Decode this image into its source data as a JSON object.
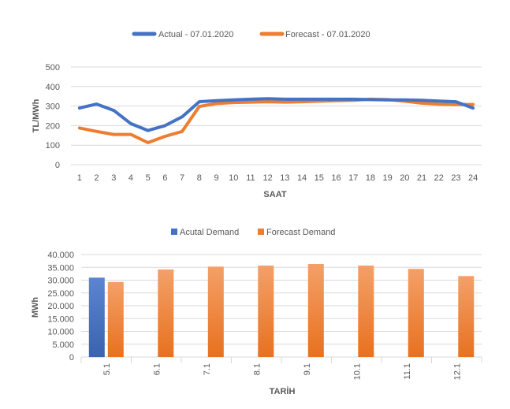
{
  "colors": {
    "actual": "#4472C4",
    "forecast": "#ED7D31",
    "grid": "#D9D9D9",
    "text": "#595959"
  },
  "chart_data": [
    {
      "type": "line",
      "title": "",
      "legend": [
        "Actual - 07.01.2020",
        "Forecast - 07.01.2020"
      ],
      "legend_position": "top",
      "xlabel": "SAAT",
      "ylabel": "TL/MWh",
      "x": [
        "1",
        "2",
        "3",
        "4",
        "5",
        "6",
        "7",
        "8",
        "9",
        "10",
        "11",
        "12",
        "13",
        "14",
        "15",
        "16",
        "17",
        "18",
        "19",
        "20",
        "21",
        "22",
        "23",
        "24"
      ],
      "yticks": [
        "0",
        "100",
        "200",
        "300",
        "400",
        "500"
      ],
      "ylim": [
        0,
        500
      ],
      "grid": true,
      "series": [
        {
          "name": "Actual - 07.01.2020",
          "values": [
            290,
            310,
            278,
            210,
            175,
            200,
            245,
            322,
            328,
            332,
            335,
            338,
            335,
            335,
            335,
            335,
            335,
            333,
            332,
            332,
            330,
            326,
            322,
            290
          ]
        },
        {
          "name": "Forecast - 07.01.2020",
          "values": [
            188,
            170,
            155,
            155,
            113,
            145,
            170,
            298,
            313,
            318,
            320,
            322,
            320,
            322,
            325,
            328,
            330,
            335,
            333,
            325,
            315,
            310,
            308,
            308
          ]
        }
      ]
    },
    {
      "type": "bar",
      "title": "",
      "legend": [
        "Acutal Demand",
        "Forecast Demand"
      ],
      "legend_position": "top",
      "xlabel": "TARİH",
      "ylabel": "MWh",
      "categories": [
        "5.1",
        "6.1",
        "7.1",
        "8.1",
        "9.1",
        "10.1",
        "11.1",
        "12.1"
      ],
      "yticks": [
        "0",
        "5.000",
        "10.000",
        "15.000",
        "20.000",
        "25.000",
        "30.000",
        "35.000",
        "40.000"
      ],
      "ylim": [
        0,
        40000
      ],
      "grid": true,
      "series": [
        {
          "name": "Acutal Demand",
          "values": [
            31000,
            null,
            null,
            null,
            null,
            null,
            null,
            null
          ]
        },
        {
          "name": "Forecast Demand",
          "values": [
            29300,
            34200,
            35300,
            35700,
            36300,
            35700,
            34400,
            31600
          ]
        }
      ]
    }
  ]
}
